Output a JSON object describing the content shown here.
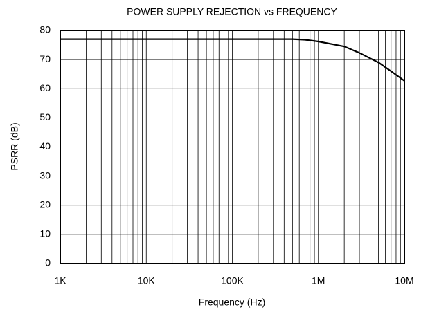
{
  "chart_data": {
    "type": "line",
    "title": "POWER SUPPLY REJECTION vs FREQUENCY",
    "x_label": "Frequency (Hz)",
    "y_label": "PSRR (dB)",
    "x_scale": "log",
    "x": [
      1000,
      10000,
      100000,
      300000,
      500000,
      700000,
      1000000,
      2000000,
      3000000,
      5000000,
      7000000,
      10000000
    ],
    "series": [
      {
        "name": "PSRR",
        "color": "#000000",
        "values": [
          77,
          77,
          77,
          77,
          77,
          76.8,
          76.2,
          74.5,
          72.3,
          69,
          66,
          62.7
        ]
      }
    ],
    "xlim": [
      1000,
      10000000
    ],
    "xticks": [
      {
        "value": 1000,
        "label": "1K"
      },
      {
        "value": 10000,
        "label": "10K"
      },
      {
        "value": 100000,
        "label": "100K"
      },
      {
        "value": 1000000,
        "label": "1M"
      },
      {
        "value": 10000000,
        "label": "10M"
      }
    ],
    "ylim": [
      0,
      80
    ],
    "yticks": [
      0,
      10,
      20,
      30,
      40,
      50,
      60,
      70,
      80
    ],
    "grid": true
  }
}
